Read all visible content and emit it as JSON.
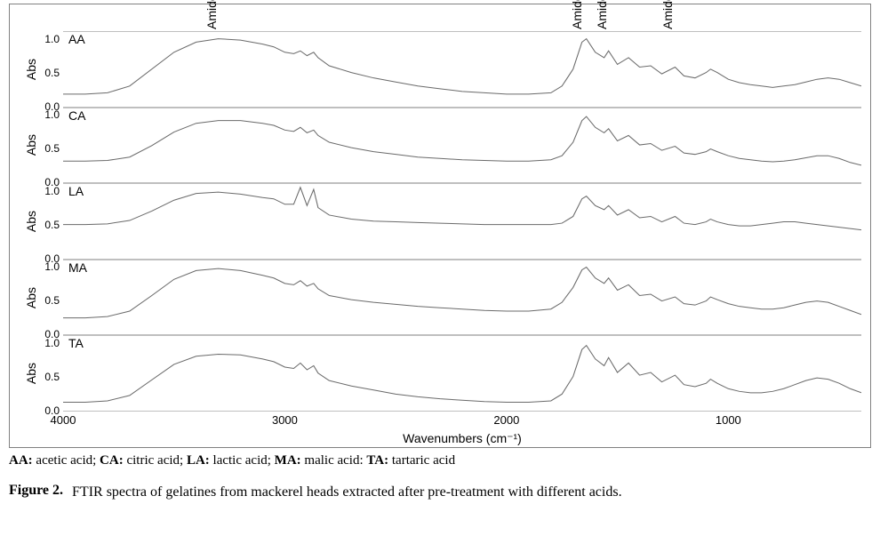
{
  "figure": {
    "type": "stacked-line-spectra",
    "background_color": "#ffffff",
    "frame_color": "#808080",
    "subplot_divider_color": "#bfbfbf",
    "line_width": 1.2,
    "xlabel": "Wavenumbers (cm⁻¹)",
    "ylabel": "Abs",
    "label_fontsize": 14,
    "tick_fontsize": 12,
    "x_reversed": true,
    "xlim": [
      400,
      4000
    ],
    "xticks": [
      4000,
      3000,
      2000,
      1000
    ],
    "ylim": [
      0.0,
      1.1
    ],
    "yticks": [
      0.0,
      0.5,
      1.0
    ],
    "top_annotations": [
      {
        "text": "Amide A",
        "x": 3300
      },
      {
        "text": "Amide I",
        "x": 1650
      },
      {
        "text": "Amide II",
        "x": 1540
      },
      {
        "text": "Amide III",
        "x": 1240
      }
    ],
    "series_line_color": "#6a6a6a",
    "x_samples": [
      4000,
      3900,
      3800,
      3700,
      3600,
      3500,
      3400,
      3300,
      3200,
      3100,
      3050,
      3000,
      2960,
      2930,
      2900,
      2870,
      2850,
      2800,
      2700,
      2600,
      2500,
      2400,
      2300,
      2200,
      2100,
      2000,
      1900,
      1800,
      1750,
      1700,
      1660,
      1640,
      1600,
      1560,
      1540,
      1500,
      1450,
      1400,
      1350,
      1300,
      1240,
      1200,
      1150,
      1100,
      1080,
      1050,
      1000,
      950,
      900,
      850,
      800,
      750,
      700,
      650,
      600,
      550,
      500,
      450,
      400
    ],
    "series": [
      {
        "id": "AA",
        "label": "AA",
        "y": [
          0.18,
          0.18,
          0.2,
          0.3,
          0.55,
          0.8,
          0.95,
          1.0,
          0.98,
          0.92,
          0.88,
          0.8,
          0.78,
          0.82,
          0.75,
          0.8,
          0.72,
          0.6,
          0.5,
          0.42,
          0.36,
          0.3,
          0.26,
          0.22,
          0.2,
          0.18,
          0.18,
          0.2,
          0.3,
          0.55,
          0.95,
          1.0,
          0.8,
          0.72,
          0.82,
          0.62,
          0.72,
          0.58,
          0.6,
          0.48,
          0.58,
          0.45,
          0.42,
          0.5,
          0.55,
          0.5,
          0.4,
          0.35,
          0.32,
          0.3,
          0.28,
          0.3,
          0.32,
          0.36,
          0.4,
          0.42,
          0.4,
          0.35,
          0.3
        ]
      },
      {
        "id": "CA",
        "label": "CA",
        "y": [
          0.32,
          0.32,
          0.33,
          0.38,
          0.55,
          0.75,
          0.88,
          0.92,
          0.92,
          0.88,
          0.85,
          0.78,
          0.76,
          0.82,
          0.74,
          0.78,
          0.7,
          0.6,
          0.52,
          0.46,
          0.42,
          0.38,
          0.36,
          0.34,
          0.33,
          0.32,
          0.32,
          0.34,
          0.4,
          0.6,
          0.92,
          0.98,
          0.82,
          0.74,
          0.8,
          0.62,
          0.7,
          0.56,
          0.58,
          0.48,
          0.54,
          0.44,
          0.42,
          0.46,
          0.5,
          0.46,
          0.4,
          0.36,
          0.34,
          0.32,
          0.31,
          0.32,
          0.34,
          0.37,
          0.4,
          0.4,
          0.36,
          0.3,
          0.26
        ]
      },
      {
        "id": "LA",
        "label": "LA",
        "y": [
          0.5,
          0.5,
          0.51,
          0.56,
          0.7,
          0.86,
          0.96,
          0.98,
          0.95,
          0.9,
          0.88,
          0.8,
          0.8,
          1.05,
          0.78,
          1.02,
          0.75,
          0.64,
          0.58,
          0.55,
          0.54,
          0.53,
          0.52,
          0.51,
          0.5,
          0.5,
          0.5,
          0.5,
          0.52,
          0.62,
          0.88,
          0.92,
          0.78,
          0.72,
          0.78,
          0.64,
          0.72,
          0.6,
          0.62,
          0.54,
          0.62,
          0.52,
          0.5,
          0.54,
          0.58,
          0.54,
          0.5,
          0.48,
          0.48,
          0.5,
          0.52,
          0.54,
          0.54,
          0.52,
          0.5,
          0.48,
          0.46,
          0.44,
          0.42
        ]
      },
      {
        "id": "MA",
        "label": "MA",
        "y": [
          0.25,
          0.25,
          0.27,
          0.35,
          0.58,
          0.82,
          0.95,
          0.98,
          0.95,
          0.88,
          0.84,
          0.76,
          0.74,
          0.8,
          0.72,
          0.76,
          0.68,
          0.58,
          0.52,
          0.48,
          0.45,
          0.42,
          0.4,
          0.38,
          0.36,
          0.35,
          0.35,
          0.38,
          0.48,
          0.7,
          0.96,
          1.0,
          0.84,
          0.76,
          0.84,
          0.66,
          0.74,
          0.58,
          0.6,
          0.5,
          0.56,
          0.46,
          0.44,
          0.5,
          0.56,
          0.52,
          0.46,
          0.42,
          0.4,
          0.38,
          0.38,
          0.4,
          0.44,
          0.48,
          0.5,
          0.48,
          0.42,
          0.36,
          0.3
        ]
      },
      {
        "id": "TA",
        "label": "TA",
        "y": [
          0.12,
          0.12,
          0.14,
          0.22,
          0.45,
          0.68,
          0.8,
          0.83,
          0.82,
          0.76,
          0.72,
          0.64,
          0.62,
          0.7,
          0.6,
          0.66,
          0.55,
          0.44,
          0.36,
          0.3,
          0.24,
          0.2,
          0.17,
          0.15,
          0.13,
          0.12,
          0.12,
          0.14,
          0.24,
          0.5,
          0.9,
          0.96,
          0.76,
          0.66,
          0.78,
          0.56,
          0.7,
          0.52,
          0.56,
          0.42,
          0.52,
          0.38,
          0.35,
          0.4,
          0.46,
          0.4,
          0.32,
          0.28,
          0.26,
          0.26,
          0.28,
          0.32,
          0.38,
          0.44,
          0.48,
          0.46,
          0.4,
          0.32,
          0.26
        ]
      }
    ]
  },
  "legend_line": {
    "items": [
      {
        "code": "AA",
        "name": "acetic acid"
      },
      {
        "code": "CA",
        "name": "citric acid"
      },
      {
        "code": "LA",
        "name": "lactic acid"
      },
      {
        "code": "MA",
        "name": "malic acid"
      },
      {
        "code": "TA",
        "name": "tartaric acid"
      }
    ]
  },
  "caption": {
    "label": "Figure 2.",
    "text": "FTIR spectra of gelatines from mackerel heads extracted after pre-treatment with different acids."
  }
}
